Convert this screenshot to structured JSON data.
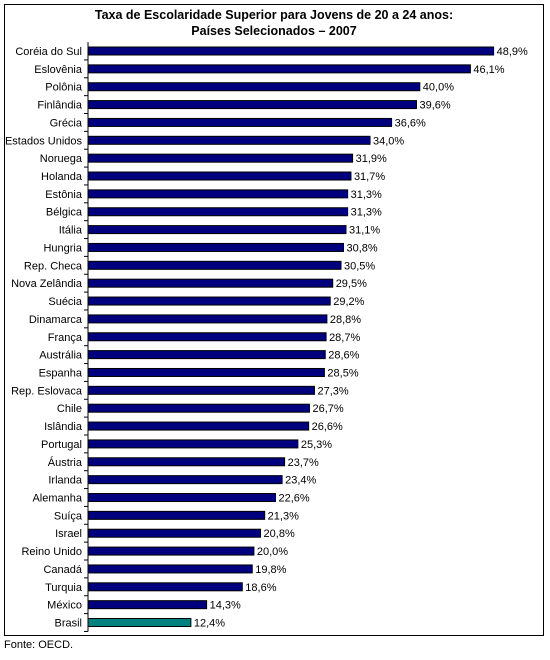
{
  "title_line1": "Taxa de Escolaridade Superior para Jovens de 20 a 24 anos:",
  "title_line2": "Países Selecionados – 2007",
  "source": "Fonte: OECD.",
  "colors": {
    "bar": "#00007f",
    "highlight": "#00807f",
    "bar_outline": "#000000"
  },
  "chart_data": {
    "type": "bar",
    "orientation": "horizontal",
    "title": "Taxa de Escolaridade Superior para Jovens de 20 a 24 anos: Países Selecionados – 2007",
    "categories": [
      "Coréia do Sul",
      "Eslovênia",
      "Polônia",
      "Finlândia",
      "Grécia",
      "Estados Unidos",
      "Noruega",
      "Holanda",
      "Estônia",
      "Bélgica",
      "Itália",
      "Hungria",
      "Rep. Checa",
      "Nova Zelândia",
      "Suécia",
      "Dinamarca",
      "França",
      "Austrália",
      "Espanha",
      "Rep. Eslovaca",
      "Chile",
      "Islândia",
      "Portugal",
      "Áustria",
      "Irlanda",
      "Alemanha",
      "Suíça",
      "Israel",
      "Reino Unido",
      "Canadá",
      "Turquia",
      "México",
      "Brasil"
    ],
    "values": [
      48.9,
      46.1,
      40.0,
      39.6,
      36.6,
      34.0,
      31.9,
      31.7,
      31.3,
      31.3,
      31.1,
      30.8,
      30.5,
      29.5,
      29.2,
      28.8,
      28.7,
      28.6,
      28.5,
      27.3,
      26.7,
      26.6,
      25.3,
      23.7,
      23.4,
      22.6,
      21.3,
      20.8,
      20.0,
      19.8,
      18.6,
      14.3,
      12.4
    ],
    "labels": [
      "48,9%",
      "46,1%",
      "40,0%",
      "39,6%",
      "36,6%",
      "34,0%",
      "31,9%",
      "31,7%",
      "31,3%",
      "31,3%",
      "31,1%",
      "30,8%",
      "30,5%",
      "29,5%",
      "29,2%",
      "28,8%",
      "28,7%",
      "28,6%",
      "28,5%",
      "27,3%",
      "26,7%",
      "26,6%",
      "25,3%",
      "23,7%",
      "23,4%",
      "22,6%",
      "21,3%",
      "20,8%",
      "20,0%",
      "19,8%",
      "18,6%",
      "14,3%",
      "12,4%"
    ],
    "highlighted_category": "Brasil",
    "xlim": [
      0,
      50
    ],
    "grid": false,
    "legend": "none"
  }
}
